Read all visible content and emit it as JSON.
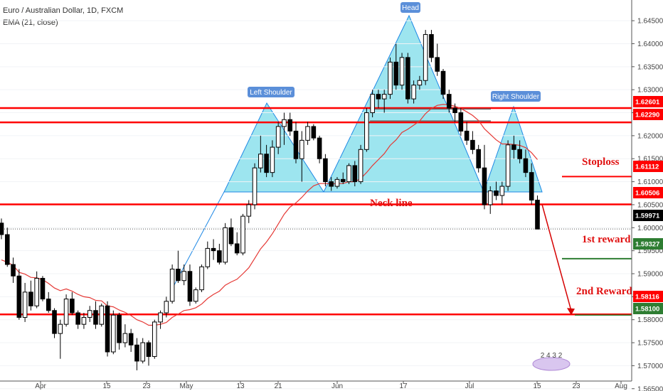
{
  "header": {
    "symbol": "Euro / Australian Dollar, 1D, FXCM",
    "indicator": "EMA (21, close)"
  },
  "chart_data": {
    "type": "candlestick",
    "ylim": [
      1.5645,
      1.6495
    ],
    "y_ticks": [
      "1.64500",
      "1.64000",
      "1.63500",
      "1.63000",
      "1.62500",
      "1.62000",
      "1.61500",
      "1.61000",
      "1.60500",
      "1.60000",
      "1.59500",
      "1.59000",
      "1.58500",
      "1.58000",
      "1.57500",
      "1.57000",
      "1.56500"
    ],
    "x_ticks": [
      "Apr",
      "15",
      "23",
      "May",
      "13",
      "21",
      "Jun",
      "17",
      "Jul",
      "15",
      "23",
      "Aug"
    ],
    "candles": [
      [
        1.601,
        1.602,
        1.5975,
        1.5985
      ],
      [
        1.5985,
        1.6,
        1.5915,
        1.592
      ],
      [
        1.592,
        1.5935,
        1.588,
        1.5895
      ],
      [
        1.5895,
        1.591,
        1.58,
        1.5805
      ],
      [
        1.5805,
        1.588,
        1.5795,
        1.586
      ],
      [
        1.586,
        1.5885,
        1.582,
        1.583
      ],
      [
        1.583,
        1.5905,
        1.5825,
        1.589
      ],
      [
        1.589,
        1.5895,
        1.584,
        1.5845
      ],
      [
        1.5845,
        1.586,
        1.5815,
        1.582
      ],
      [
        1.582,
        1.5825,
        1.576,
        1.577
      ],
      [
        1.577,
        1.58,
        1.5715,
        1.579
      ],
      [
        1.579,
        1.5855,
        1.5785,
        1.5845
      ],
      [
        1.5845,
        1.586,
        1.581,
        1.5815
      ],
      [
        1.5815,
        1.582,
        1.578,
        1.579
      ],
      [
        1.579,
        1.5815,
        1.578,
        1.5805
      ],
      [
        1.5805,
        1.583,
        1.5795,
        1.582
      ],
      [
        1.582,
        1.584,
        1.578,
        1.579
      ],
      [
        1.579,
        1.5835,
        1.5785,
        1.583
      ],
      [
        1.583,
        1.584,
        1.572,
        1.573
      ],
      [
        1.573,
        1.582,
        1.5725,
        1.581
      ],
      [
        1.581,
        1.5815,
        1.5735,
        1.575
      ],
      [
        1.575,
        1.579,
        1.574,
        1.577
      ],
      [
        1.577,
        1.578,
        1.573,
        1.5745
      ],
      [
        1.5745,
        1.576,
        1.569,
        1.571
      ],
      [
        1.571,
        1.576,
        1.5705,
        1.575
      ],
      [
        1.575,
        1.5755,
        1.57,
        1.572
      ],
      [
        1.572,
        1.58,
        1.5715,
        1.5795
      ],
      [
        1.5795,
        1.582,
        1.578,
        1.5815
      ],
      [
        1.5815,
        1.585,
        1.5805,
        1.584
      ],
      [
        1.584,
        1.592,
        1.5835,
        1.591
      ],
      [
        1.591,
        1.595,
        1.588,
        1.5885
      ],
      [
        1.5885,
        1.592,
        1.5875,
        1.5905
      ],
      [
        1.5905,
        1.592,
        1.583,
        1.584
      ],
      [
        1.584,
        1.587,
        1.5835,
        1.5865
      ],
      [
        1.5865,
        1.592,
        1.586,
        1.5915
      ],
      [
        1.5915,
        1.597,
        1.591,
        1.5955
      ],
      [
        1.5955,
        1.5975,
        1.593,
        1.595
      ],
      [
        1.595,
        1.5965,
        1.592,
        1.5925
      ],
      [
        1.5925,
        1.601,
        1.592,
        1.6
      ],
      [
        1.6,
        1.602,
        1.596,
        1.5965
      ],
      [
        1.5965,
        1.599,
        1.594,
        1.5945
      ],
      [
        1.5945,
        1.603,
        1.594,
        1.6025
      ],
      [
        1.6025,
        1.606,
        1.601,
        1.605
      ],
      [
        1.605,
        1.614,
        1.604,
        1.613
      ],
      [
        1.613,
        1.62,
        1.612,
        1.616
      ],
      [
        1.616,
        1.618,
        1.611,
        1.612
      ],
      [
        1.612,
        1.619,
        1.611,
        1.6175
      ],
      [
        1.6175,
        1.623,
        1.616,
        1.622
      ],
      [
        1.622,
        1.625,
        1.618,
        1.6235
      ],
      [
        1.6235,
        1.625,
        1.62,
        1.621
      ],
      [
        1.621,
        1.623,
        1.614,
        1.615
      ],
      [
        1.615,
        1.621,
        1.61,
        1.619
      ],
      [
        1.619,
        1.623,
        1.618,
        1.622
      ],
      [
        1.622,
        1.6225,
        1.619,
        1.6195
      ],
      [
        1.6195,
        1.62,
        1.614,
        1.615
      ],
      [
        1.615,
        1.616,
        1.609,
        1.61
      ],
      [
        1.61,
        1.611,
        1.608,
        1.609
      ],
      [
        1.609,
        1.611,
        1.6085,
        1.6105
      ],
      [
        1.6105,
        1.612,
        1.6095,
        1.61
      ],
      [
        1.61,
        1.614,
        1.6095,
        1.6135
      ],
      [
        1.6135,
        1.6145,
        1.609,
        1.61
      ],
      [
        1.61,
        1.618,
        1.6095,
        1.617
      ],
      [
        1.617,
        1.626,
        1.6165,
        1.625
      ],
      [
        1.625,
        1.63,
        1.624,
        1.629
      ],
      [
        1.629,
        1.63,
        1.626,
        1.628
      ],
      [
        1.628,
        1.63,
        1.625,
        1.629
      ],
      [
        1.629,
        1.637,
        1.628,
        1.636
      ],
      [
        1.636,
        1.64,
        1.63,
        1.631
      ],
      [
        1.631,
        1.638,
        1.63,
        1.637
      ],
      [
        1.637,
        1.638,
        1.627,
        1.628
      ],
      [
        1.628,
        1.632,
        1.627,
        1.631
      ],
      [
        1.631,
        1.633,
        1.63,
        1.632
      ],
      [
        1.632,
        1.643,
        1.631,
        1.642
      ],
      [
        1.642,
        1.643,
        1.636,
        1.637
      ],
      [
        1.637,
        1.64,
        1.633,
        1.634
      ],
      [
        1.634,
        1.6345,
        1.628,
        1.629
      ],
      [
        1.629,
        1.63,
        1.625,
        1.626
      ],
      [
        1.626,
        1.627,
        1.623,
        1.625
      ],
      [
        1.625,
        1.626,
        1.62,
        1.621
      ],
      [
        1.621,
        1.623,
        1.618,
        1.619
      ],
      [
        1.619,
        1.621,
        1.616,
        1.617
      ],
      [
        1.617,
        1.618,
        1.612,
        1.613
      ],
      [
        1.613,
        1.618,
        1.604,
        1.605
      ],
      [
        1.605,
        1.609,
        1.603,
        1.608
      ],
      [
        1.608,
        1.61,
        1.606,
        1.607
      ],
      [
        1.607,
        1.61,
        1.605,
        1.609
      ],
      [
        1.609,
        1.619,
        1.608,
        1.618
      ],
      [
        1.618,
        1.62,
        1.615,
        1.617
      ],
      [
        1.617,
        1.619,
        1.614,
        1.615
      ],
      [
        1.615,
        1.617,
        1.611,
        1.612
      ],
      [
        1.612,
        1.614,
        1.605,
        1.606
      ],
      [
        1.606,
        1.607,
        1.5997,
        1.5997
      ]
    ],
    "ema": [
      1.593,
      1.5925,
      1.5918,
      1.5903,
      1.5899,
      1.5892,
      1.5891,
      1.5887,
      1.5879,
      1.5869,
      1.5863,
      1.5867,
      1.5862,
      1.5855,
      1.585,
      1.5848,
      1.5842,
      1.5841,
      1.583,
      1.5828,
      1.5821,
      1.5816,
      1.5809,
      1.58,
      1.5795,
      1.5788,
      1.5788,
      1.579,
      1.5794,
      1.5805,
      1.5812,
      1.582,
      1.5822,
      1.5826,
      1.5834,
      1.5846,
      1.5855,
      1.5862,
      1.5875,
      1.5882,
      1.5888,
      1.59,
      1.5913,
      1.5933,
      1.5954,
      1.5969,
      1.5987,
      1.6008,
      1.6029,
      1.6045,
      1.6054,
      1.6066,
      1.608,
      1.6091,
      1.6096,
      1.6096,
      1.6095,
      1.6096,
      1.6096,
      1.61,
      1.61,
      1.6107,
      1.612,
      1.6135,
      1.6148,
      1.6161,
      1.6179,
      1.6191,
      1.6207,
      1.6214,
      1.6223,
      1.6232,
      1.6248,
      1.6259,
      1.6266,
      1.6268,
      1.6267,
      1.6264,
      1.6259,
      1.6252,
      1.6244,
      1.6233,
      1.6215,
      1.6203,
      1.6191,
      1.6182,
      1.6182,
      1.6181,
      1.6179,
      1.6174,
      1.6163,
      1.6148
    ],
    "neckline": "1.60506",
    "levels": [
      {
        "price": 1.62601,
        "label": "1.62601"
      },
      {
        "price": 1.6229,
        "label": "1.62290"
      },
      {
        "price": 1.61112,
        "label": "1.61112"
      },
      {
        "price": 1.60506,
        "label": "1.60506"
      },
      {
        "price": 1.59971,
        "label": "1.59971"
      },
      {
        "price": 1.59327,
        "label": "1.59327"
      },
      {
        "price": 1.58116,
        "label": "1.58116"
      },
      {
        "price": 1.581,
        "label": "1.58100"
      }
    ],
    "annotations": {
      "left_shoulder": "Left Shoulder",
      "head": "Head",
      "right_shoulder": "Right Shoulder",
      "neck_line": "Neck line",
      "stoploss": "Stoploss",
      "first_reward": "1st reward",
      "second_reward": "2nd Reward"
    },
    "badge": "2 4 3 2"
  },
  "colors": {
    "bull": "#ffffff",
    "bear": "#000000",
    "ema": "#e53935",
    "level": "#ff0000",
    "pattern_fill": "#4dd0e1",
    "pattern_edge": "#1e88e5",
    "label_bg": "#5b8fd9",
    "reward_green": "#2e7d32",
    "last_price": "#000000"
  }
}
